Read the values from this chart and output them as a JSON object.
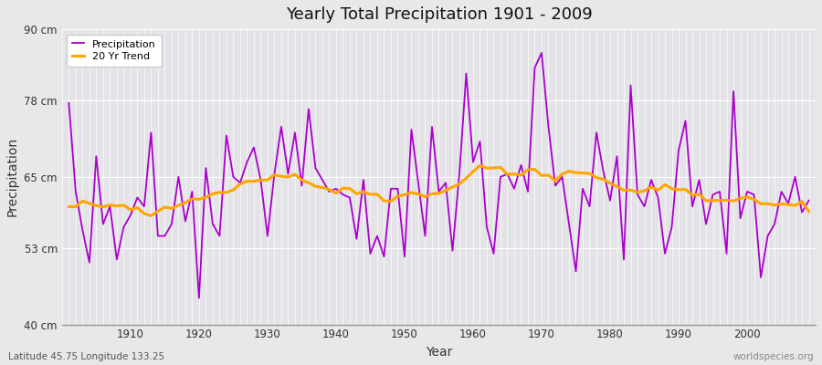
{
  "title": "Yearly Total Precipitation 1901 - 2009",
  "xlabel": "Year",
  "ylabel": "Precipitation",
  "subtitle": "Latitude 45.75 Longitude 133.25",
  "watermark": "worldspecies.org",
  "years": [
    1901,
    1902,
    1903,
    1904,
    1905,
    1906,
    1907,
    1908,
    1909,
    1910,
    1911,
    1912,
    1913,
    1914,
    1915,
    1916,
    1917,
    1918,
    1919,
    1920,
    1921,
    1922,
    1923,
    1924,
    1925,
    1926,
    1927,
    1928,
    1929,
    1930,
    1931,
    1932,
    1933,
    1934,
    1935,
    1936,
    1937,
    1938,
    1939,
    1940,
    1941,
    1942,
    1943,
    1944,
    1945,
    1946,
    1947,
    1948,
    1949,
    1950,
    1951,
    1952,
    1953,
    1954,
    1955,
    1956,
    1957,
    1958,
    1959,
    1960,
    1961,
    1962,
    1963,
    1964,
    1965,
    1966,
    1967,
    1968,
    1969,
    1970,
    1971,
    1972,
    1973,
    1974,
    1975,
    1976,
    1977,
    1978,
    1979,
    1980,
    1981,
    1982,
    1983,
    1984,
    1985,
    1986,
    1987,
    1988,
    1989,
    1990,
    1991,
    1992,
    1993,
    1994,
    1995,
    1996,
    1997,
    1998,
    1999,
    2000,
    2001,
    2002,
    2003,
    2004,
    2005,
    2006,
    2007,
    2008,
    2009
  ],
  "precipitation": [
    77.5,
    62.5,
    56.0,
    50.5,
    68.5,
    57.0,
    60.0,
    51.0,
    56.5,
    58.5,
    61.5,
    60.0,
    72.5,
    55.0,
    55.0,
    57.0,
    65.0,
    57.5,
    62.5,
    44.5,
    66.5,
    57.0,
    55.0,
    72.0,
    65.0,
    64.0,
    67.5,
    70.0,
    64.5,
    55.0,
    65.5,
    73.5,
    65.5,
    72.5,
    63.5,
    76.5,
    66.5,
    64.5,
    62.5,
    63.0,
    62.0,
    61.5,
    54.5,
    64.5,
    52.0,
    55.0,
    51.5,
    63.0,
    63.0,
    51.5,
    73.0,
    64.0,
    55.0,
    73.5,
    62.5,
    64.0,
    52.5,
    65.5,
    82.5,
    67.5,
    71.0,
    56.5,
    52.0,
    65.0,
    65.5,
    63.0,
    67.0,
    62.5,
    83.5,
    86.0,
    73.5,
    63.5,
    65.0,
    57.0,
    49.0,
    63.0,
    60.0,
    72.5,
    66.0,
    61.0,
    68.5,
    51.0,
    80.5,
    62.0,
    60.0,
    64.5,
    61.5,
    52.0,
    56.5,
    69.5,
    74.5,
    60.0,
    64.5,
    57.0,
    62.0,
    62.5,
    52.0,
    79.5,
    58.0,
    62.5,
    62.0,
    48.0,
    55.0,
    57.0,
    62.5,
    60.5,
    65.0,
    59.0,
    61.0
  ],
  "ylim": [
    40,
    90
  ],
  "yticks": [
    40,
    53,
    65,
    78,
    90
  ],
  "ytick_labels": [
    "40 cm",
    "53 cm",
    "65 cm",
    "78 cm",
    "90 cm"
  ],
  "xlim": [
    1900,
    2010
  ],
  "xticks": [
    1910,
    1920,
    1930,
    1940,
    1950,
    1960,
    1970,
    1980,
    1990,
    2000
  ],
  "precip_color": "#AA00CC",
  "trend_color": "#FFA500",
  "bg_color": "#E8E8E8",
  "plot_bg_color": "#E4E4E8",
  "grid_color": "#FFFFFF",
  "legend_labels": [
    "Precipitation",
    "20 Yr Trend"
  ],
  "trend_window": 20
}
